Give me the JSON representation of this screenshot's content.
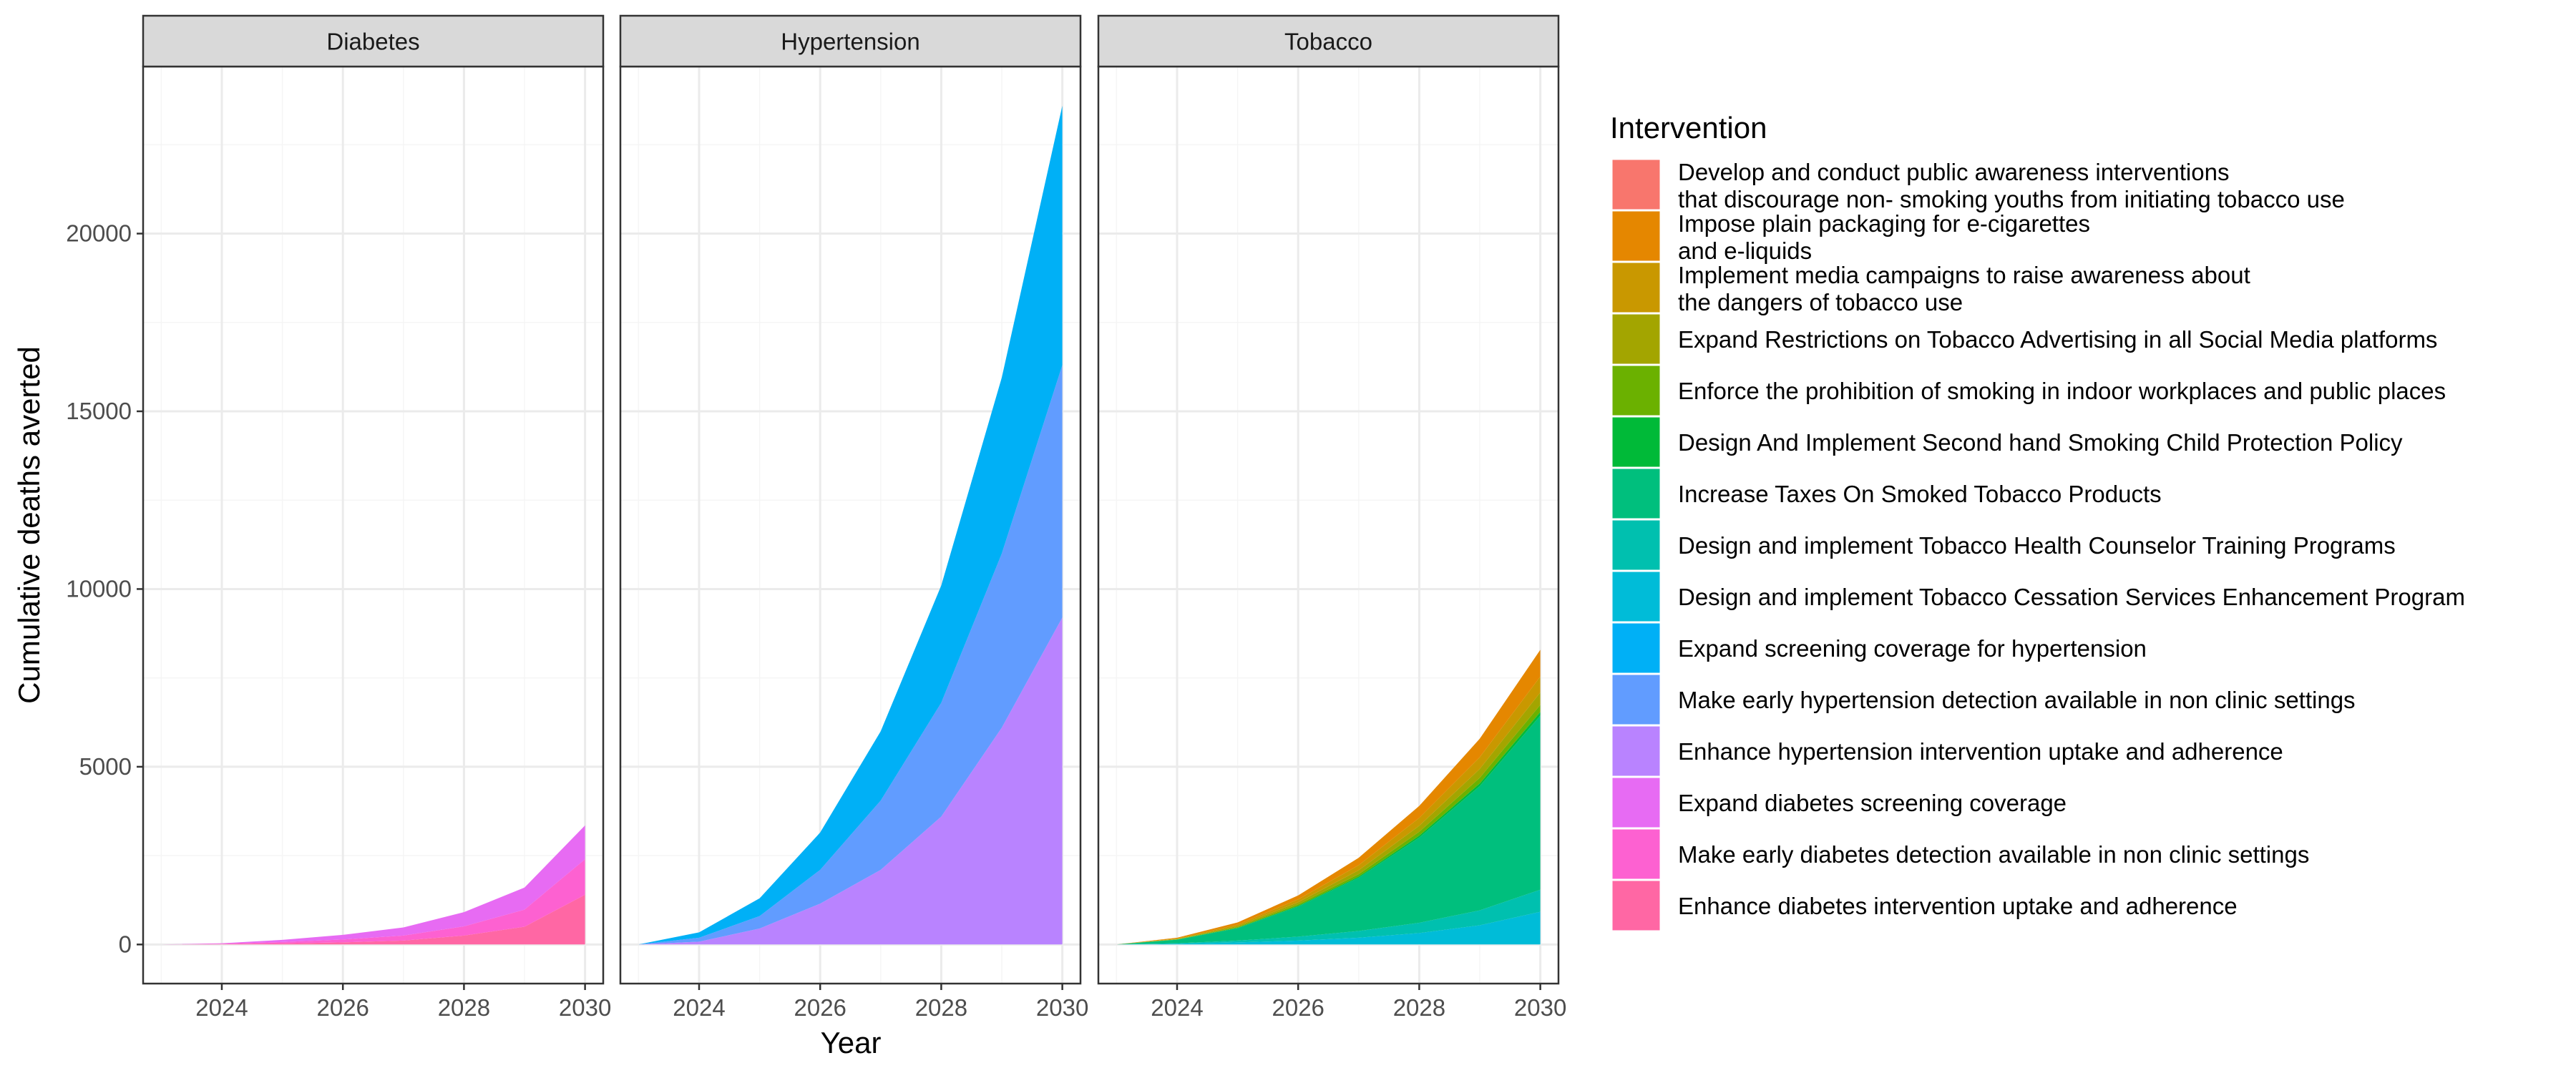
{
  "chart_data": {
    "type": "area",
    "stacked": true,
    "facet_by": "disease",
    "facets": [
      "Diabetes",
      "Hypertension",
      "Tobacco"
    ],
    "x_label": "Year",
    "y_label": "Cumulative deaths averted",
    "x_ticks": [
      2024,
      2026,
      2028,
      2030
    ],
    "y_ticks": [
      0,
      5000,
      10000,
      15000,
      20000
    ],
    "xlim": [
      2022.7,
      2030.3
    ],
    "ylim": [
      -1100,
      24700
    ],
    "x": [
      2023,
      2024,
      2025,
      2026,
      2027,
      2028,
      2029,
      2030
    ],
    "grid": true,
    "legend": {
      "title": "Intervention",
      "position": "right",
      "entries": [
        {
          "label": [
            "Develop and conduct public awareness interventions",
            "that discourage non- smoking youths from initiating tobacco use"
          ],
          "color": "#F8766D"
        },
        {
          "label": [
            "Impose plain packaging for e-cigarettes",
            "and e-liquids"
          ],
          "color": "#E58700"
        },
        {
          "label": [
            "Implement media campaigns to raise awareness about",
            "the dangers of tobacco use"
          ],
          "color": "#C99800"
        },
        {
          "label": [
            "Expand Restrictions on Tobacco Advertising in all Social Media platforms"
          ],
          "color": "#A3A500"
        },
        {
          "label": [
            "Enforce the prohibition of smoking in indoor workplaces and public places"
          ],
          "color": "#6BB100"
        },
        {
          "label": [
            "Design And Implement Second hand Smoking Child Protection Policy"
          ],
          "color": "#00BA38"
        },
        {
          "label": [
            "Increase Taxes On Smoked Tobacco Products"
          ],
          "color": "#00BF7D"
        },
        {
          "label": [
            "Design and implement Tobacco Health Counselor Training Programs"
          ],
          "color": "#00C0AF"
        },
        {
          "label": [
            "Design and implement Tobacco Cessation Services Enhancement Program"
          ],
          "color": "#00BCD8"
        },
        {
          "label": [
            "Expand screening coverage for hypertension"
          ],
          "color": "#00B0F6"
        },
        {
          "label": [
            "Make early hypertension detection available in non clinic settings"
          ],
          "color": "#619CFF"
        },
        {
          "label": [
            "Enhance hypertension intervention uptake and adherence"
          ],
          "color": "#B983FF"
        },
        {
          "label": [
            "Expand diabetes screening coverage"
          ],
          "color": "#E76BF3"
        },
        {
          "label": [
            "Make early diabetes detection available in non clinic settings"
          ],
          "color": "#FD61D1"
        },
        {
          "label": [
            "Enhance diabetes intervention uptake and adherence"
          ],
          "color": "#FF67A4"
        }
      ]
    },
    "series": {
      "Diabetes": [
        {
          "intervention": "Expand diabetes screening coverage",
          "values": [
            0,
            15,
            60,
            130,
            230,
            400,
            620,
            950
          ]
        },
        {
          "intervention": "Make early diabetes detection available in non clinic settings",
          "values": [
            0,
            10,
            40,
            80,
            140,
            260,
            480,
            1000
          ]
        },
        {
          "intervention": "Enhance diabetes intervention uptake and adherence",
          "values": [
            0,
            10,
            30,
            60,
            110,
            250,
            500,
            1400
          ]
        }
      ],
      "Hypertension": [
        {
          "intervention": "Expand screening coverage for hypertension",
          "values": [
            0,
            150,
            500,
            1050,
            1950,
            3300,
            4950,
            7300
          ]
        },
        {
          "intervention": "Make early hypertension detection available in non clinic settings",
          "values": [
            0,
            110,
            350,
            950,
            1950,
            3200,
            4900,
            7100
          ]
        },
        {
          "intervention": "Enhance hypertension intervention uptake and adherence",
          "values": [
            0,
            80,
            450,
            1150,
            2100,
            3600,
            6100,
            9200
          ]
        }
      ],
      "Tobacco": [
        {
          "intervention": "Impose plain packaging for e-cigarettes and e-liquids",
          "values": [
            0,
            20,
            60,
            110,
            210,
            340,
            520,
            750
          ]
        },
        {
          "intervention": "Implement media campaigns to raise awareness about the dangers of tobacco use",
          "values": [
            0,
            15,
            40,
            80,
            140,
            220,
            330,
            450
          ]
        },
        {
          "intervention": "Expand Restrictions on Tobacco Advertising in all Social Media platforms",
          "values": [
            0,
            10,
            30,
            60,
            110,
            170,
            250,
            350
          ]
        },
        {
          "intervention": "Enforce the prohibition of smoking in indoor workplaces and public places",
          "values": [
            0,
            5,
            20,
            40,
            70,
            110,
            160,
            200
          ]
        },
        {
          "intervention": "Design And Implement Second hand Smoking Child Protection Policy",
          "values": [
            0,
            5,
            10,
            20,
            30,
            50,
            70,
            100
          ]
        },
        {
          "intervention": "Increase Taxes On Smoked Tobacco Products",
          "values": [
            0,
            100,
            350,
            850,
            1500,
            2400,
            3500,
            4900
          ]
        },
        {
          "intervention": "Design and implement Tobacco Health Counselor Training Programs",
          "values": [
            0,
            15,
            50,
            110,
            190,
            290,
            420,
            620
          ]
        },
        {
          "intervention": "Design and implement Tobacco Cessation Services Enhancement Program",
          "values": [
            0,
            20,
            60,
            110,
            190,
            320,
            540,
            920
          ]
        }
      ]
    },
    "colors": {
      "strip_background": "#D9D9D9",
      "panel_border": "#333333",
      "grid_major": "#EBEBEB",
      "grid_minor": "#F5F5F5",
      "tick_text": "#4D4D4D"
    }
  }
}
